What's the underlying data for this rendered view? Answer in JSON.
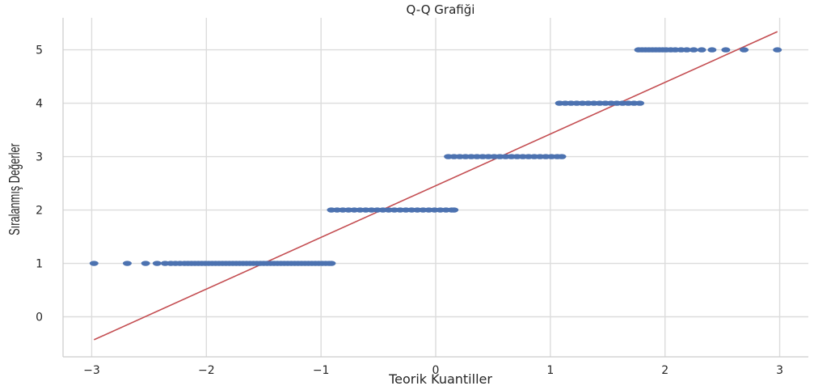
{
  "chart_data": {
    "type": "scatter",
    "title": "Q-Q Grafiği",
    "xlabel": "Teorik Kuantiller",
    "ylabel": "Sıralanmış Değerler",
    "xlim": [
      -3.25,
      3.25
    ],
    "ylim": [
      -0.75,
      5.6
    ],
    "xticks": [
      -3,
      -2,
      -1,
      0,
      1,
      2,
      3
    ],
    "xtick_labels": [
      "−3",
      "−2",
      "−1",
      "0",
      "1",
      "2",
      "3"
    ],
    "yticks": [
      0,
      1,
      2,
      3,
      4,
      5
    ],
    "ytick_labels": [
      "0",
      "1",
      "2",
      "3",
      "4",
      "5"
    ],
    "grid": true,
    "marker_color": "#4c72b0",
    "line_color": "#c44e52",
    "point_groups": [
      {
        "y": 1,
        "x": [
          -2.98,
          -2.69,
          -2.53,
          -2.43,
          -2.36,
          -2.31,
          -2.27,
          -2.23,
          -2.19,
          -2.16,
          -2.13,
          -2.1,
          -2.07,
          -2.04,
          -2.01,
          -1.98,
          -1.95,
          -1.92,
          -1.89,
          -1.86,
          -1.83,
          -1.8,
          -1.77,
          -1.74,
          -1.71,
          -1.68,
          -1.65,
          -1.62,
          -1.59,
          -1.56,
          -1.53,
          -1.5,
          -1.47,
          -1.44,
          -1.41,
          -1.38,
          -1.35,
          -1.32,
          -1.29,
          -1.26,
          -1.23,
          -1.2,
          -1.17,
          -1.14,
          -1.11,
          -1.08,
          -1.05,
          -1.02,
          -0.99,
          -0.96,
          -0.93,
          -0.91
        ]
      },
      {
        "y": 2,
        "x": [
          -0.91,
          -0.86,
          -0.81,
          -0.76,
          -0.71,
          -0.66,
          -0.61,
          -0.56,
          -0.51,
          -0.46,
          -0.41,
          -0.36,
          -0.31,
          -0.26,
          -0.21,
          -0.16,
          -0.11,
          -0.06,
          -0.01,
          0.04,
          0.09,
          0.14,
          0.16
        ]
      },
      {
        "y": 3,
        "x": [
          0.11,
          0.16,
          0.21,
          0.26,
          0.31,
          0.36,
          0.41,
          0.46,
          0.51,
          0.56,
          0.61,
          0.66,
          0.71,
          0.76,
          0.81,
          0.86,
          0.91,
          0.96,
          1.01,
          1.06,
          1.1
        ]
      },
      {
        "y": 4,
        "x": [
          1.08,
          1.13,
          1.18,
          1.23,
          1.28,
          1.33,
          1.38,
          1.43,
          1.48,
          1.53,
          1.58,
          1.63,
          1.68,
          1.73,
          1.78
        ]
      },
      {
        "y": 5,
        "x": [
          1.77,
          1.8,
          1.83,
          1.86,
          1.89,
          1.92,
          1.95,
          1.98,
          2.01,
          2.05,
          2.09,
          2.14,
          2.19,
          2.25,
          2.32,
          2.41,
          2.53,
          2.69,
          2.98
        ]
      }
    ],
    "fit_line": {
      "x": [
        -2.98,
        2.98
      ],
      "y": [
        -0.43,
        5.34
      ]
    }
  }
}
